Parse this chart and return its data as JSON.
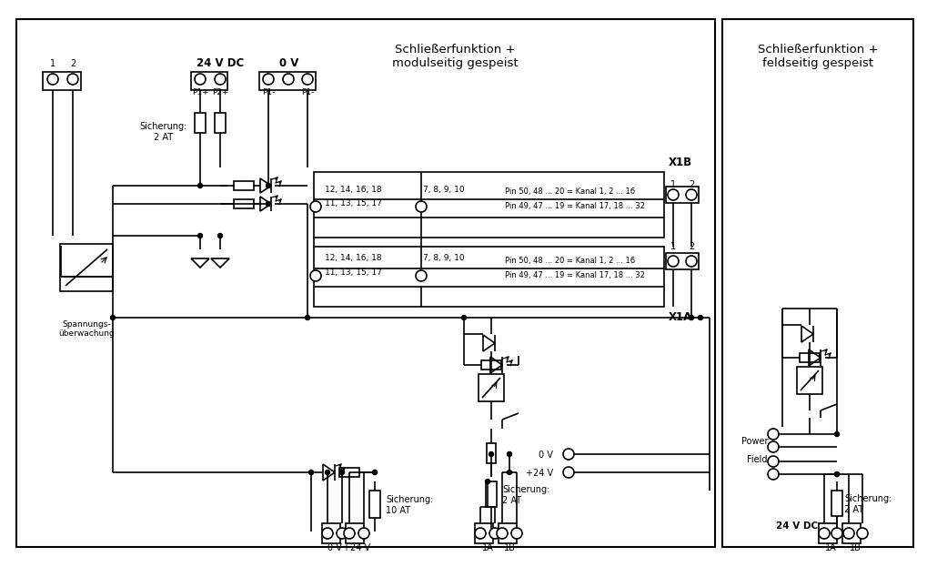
{
  "bg_color": "#ffffff",
  "fig_width": 10.0,
  "fig_height": 6.04,
  "title_left": "Schließerfunktion +\nmodulseitig gespeist",
  "title_right": "Schließerfunktion +\nfeldseitig gespeist",
  "label_24vdc": "24 V DC",
  "label_0v_top": "0 V",
  "label_p1plus": "P1+",
  "label_p2plus": "P2+",
  "label_p1minus1": "P1-",
  "label_p1minus2": "P1-",
  "label_sicherung_2at": "Sicherung:\n2 AT",
  "label_sicherung_10at": "Sicherung:\n10 AT",
  "label_sicherung_2at_b": "Sicherung:\n2 AT",
  "label_spannungsueberwachung": "Spannungs-\nüberwachung",
  "label_x1b": "X1B",
  "label_x1a": "X1A",
  "label_1b": "1B",
  "label_1a": "1A",
  "label_pin_top1": "Pin 50, 48 ... 20 = Kanal 1, 2 ... 16",
  "label_pin_top2": "Pin 49, 47 ... 19 = Kanal 17, 18 ... 32",
  "label_1214": "12, 14, 16, 18",
  "label_1113": "11, 13, 15, 17",
  "label_789": "7, 8, 9, 10",
  "label_0v": "0 V",
  "label_24v": "+24 V",
  "label_power": "Power",
  "label_field": "Field",
  "label_sicherung_2at_r": "Sicherung:\n2 AT",
  "label_24vdc_r": "24 V DC"
}
